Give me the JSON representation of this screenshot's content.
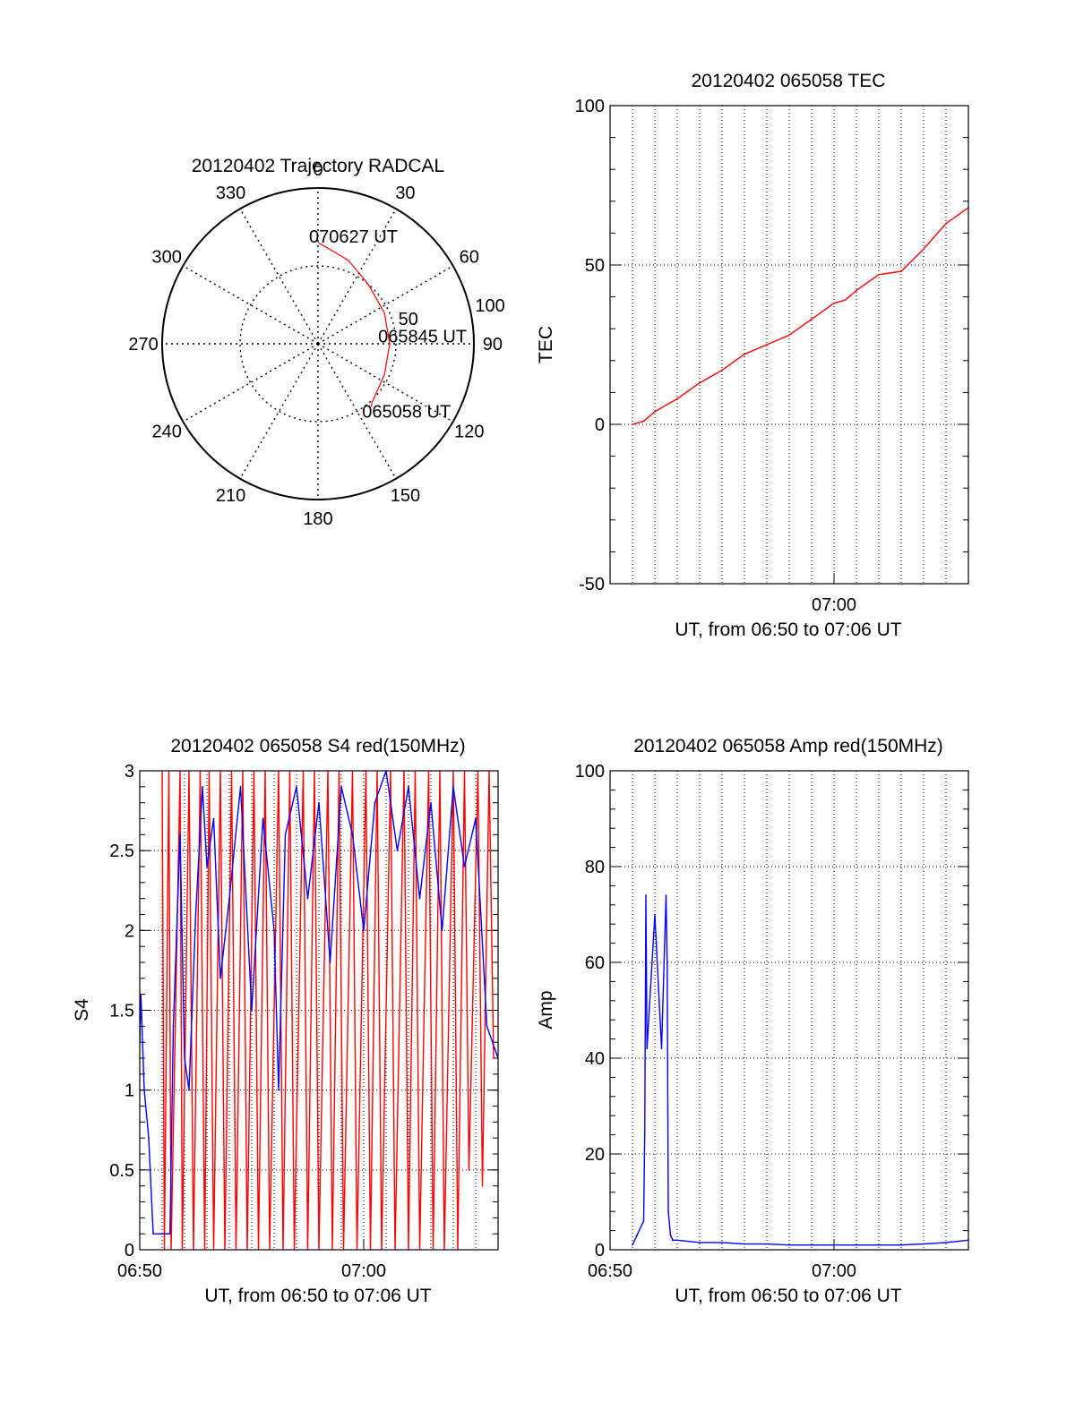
{
  "colors": {
    "red": "#ff0000",
    "blue": "#0000ff",
    "grid": "#000000"
  },
  "chart_data": [
    {
      "id": "trajectory",
      "type": "scatter",
      "title": "20120402 Trajectory RADCAL",
      "azimuth_labels": [
        "0",
        "30",
        "60",
        "90",
        "120",
        "150",
        "180",
        "210",
        "240",
        "270",
        "300",
        "330"
      ],
      "radius_labels": [
        "50",
        "100"
      ],
      "rlim": [
        0,
        100
      ],
      "grid": true,
      "series": [
        {
          "color": "#ff0000",
          "points": [
            {
              "az": 0,
              "r": 65
            },
            {
              "az": 20,
              "r": 57
            },
            {
              "az": 40,
              "r": 50
            },
            {
              "az": 65,
              "r": 47
            },
            {
              "az": 90,
              "r": 46
            },
            {
              "az": 115,
              "r": 47
            },
            {
              "az": 137,
              "r": 51
            },
            {
              "az": 140,
              "r": 53
            }
          ]
        }
      ],
      "annotations": [
        {
          "text": "070627 UT",
          "az": 0,
          "r": 65
        },
        {
          "text": "065845 UT",
          "az": 80,
          "r": 45
        },
        {
          "text": "065058 UT",
          "az": 140,
          "r": 53
        }
      ]
    },
    {
      "id": "tec",
      "type": "line",
      "title": "20120402 065058 TEC",
      "xlabel": "UT, from 06:50 to 07:06 UT",
      "ylabel": "TEC",
      "xlim": [
        0,
        16
      ],
      "ylim": [
        -50,
        100
      ],
      "xtick_labels": [
        {
          "x": 10,
          "label": "07:00"
        }
      ],
      "ytick_labels": [
        "-50",
        "0",
        "50",
        "100"
      ],
      "grid": true,
      "series": [
        {
          "color": "#ff0000",
          "x": [
            1,
            1.5,
            2,
            3,
            4,
            5,
            6,
            7,
            8,
            9,
            10,
            10.5,
            11,
            12,
            13,
            14,
            15,
            16
          ],
          "values": [
            0,
            1,
            4,
            8,
            13,
            17,
            22,
            25,
            28,
            33,
            38,
            39,
            42,
            47,
            48,
            55,
            63,
            68
          ]
        }
      ]
    },
    {
      "id": "s4",
      "type": "line",
      "title": "20120402 065058 S4 red(150MHz)",
      "xlabel": "UT, from 06:50 to 07:06 UT",
      "ylabel": "S4",
      "xlim": [
        0,
        16
      ],
      "ylim": [
        0,
        3
      ],
      "xtick_labels": [
        {
          "x": 0,
          "label": "06:50"
        },
        {
          "x": 10,
          "label": "07:00"
        }
      ],
      "ytick_labels": [
        "0",
        "0.5",
        "1",
        "1.5",
        "2",
        "2.5",
        "3"
      ],
      "grid": true,
      "series": [
        {
          "color": "#ff0000",
          "x": [
            1,
            1.1,
            1.3,
            1.4,
            1.8,
            1.9,
            2.2,
            2.4,
            2.7,
            2.9,
            3.1,
            3.3,
            3.6,
            3.8,
            4.1,
            4.3,
            4.6,
            4.8,
            5.1,
            5.3,
            5.6,
            5.8,
            6.2,
            6.4,
            6.7,
            6.9,
            7.3,
            7.5,
            7.8,
            8.0,
            8.4,
            8.6,
            8.9,
            9.1,
            9.5,
            9.7,
            10.1,
            10.3,
            10.6,
            10.8,
            11.2,
            11.4,
            11.8,
            12.0,
            12.3,
            12.5,
            12.9,
            13.1,
            13.4,
            13.6,
            14.0,
            14.2,
            14.5,
            14.7,
            15.1,
            15.3,
            15.6,
            15.8
          ],
          "values": [
            3,
            0,
            3,
            0,
            3,
            0,
            3,
            0,
            3,
            0,
            3,
            0,
            3,
            0,
            3,
            0,
            3,
            0,
            3,
            0,
            3,
            0,
            3,
            0,
            3,
            0,
            3,
            0,
            3,
            0,
            3,
            0,
            3,
            0,
            3,
            0,
            3,
            0,
            3,
            0,
            3,
            0,
            3,
            0,
            3,
            0,
            3,
            0,
            3,
            0,
            3,
            0,
            3,
            0.5,
            3,
            0.4,
            3,
            1.2
          ]
        },
        {
          "color": "#0000ff",
          "x": [
            0,
            0.05,
            0.2,
            0.4,
            0.6,
            0.9,
            1.2,
            1.35,
            1.5,
            1.8,
            2.0,
            2.2,
            2.5,
            2.8,
            3.0,
            3.3,
            3.6,
            4.0,
            4.5,
            5.0,
            5.5,
            6.0,
            6.2,
            6.5,
            7.0,
            7.5,
            8.0,
            8.5,
            9.0,
            9.5,
            10.0,
            10.5,
            11.0,
            11.5,
            12.0,
            12.5,
            13.0,
            13.5,
            14.0,
            14.5,
            15.0,
            15.5,
            16.0
          ],
          "values": [
            1.3,
            1.6,
            1.0,
            0.7,
            0.1,
            0.1,
            0.1,
            0.1,
            1.4,
            2.6,
            1.2,
            1.0,
            2.1,
            2.9,
            2.4,
            2.7,
            1.7,
            2.2,
            2.9,
            1.5,
            2.7,
            2.0,
            1.0,
            2.6,
            2.9,
            2.2,
            2.8,
            1.8,
            2.9,
            2.6,
            2.0,
            2.8,
            3.0,
            2.5,
            2.9,
            2.2,
            2.8,
            2.0,
            2.9,
            2.4,
            2.7,
            1.4,
            1.2
          ]
        }
      ]
    },
    {
      "id": "amp",
      "type": "line",
      "title": "20120402 065058 Amp red(150MHz)",
      "xlabel": "UT, from 06:50 to 07:06 UT",
      "ylabel": "Amp",
      "xlim": [
        0,
        16
      ],
      "ylim": [
        0,
        100
      ],
      "xtick_labels": [
        {
          "x": 0,
          "label": "06:50"
        },
        {
          "x": 10,
          "label": "07:00"
        }
      ],
      "ytick_labels": [
        "0",
        "20",
        "40",
        "60",
        "80",
        "100"
      ],
      "grid": true,
      "series": [
        {
          "color": "#0000ff",
          "x": [
            1,
            1.2,
            1.4,
            1.5,
            1.55,
            1.6,
            1.65,
            2.0,
            2.3,
            2.5,
            2.55,
            2.6,
            2.7,
            2.8,
            3.0,
            4.0,
            5.0,
            6.0,
            7.0,
            8.0,
            9.0,
            10.0,
            11.0,
            12.0,
            13.0,
            14.0,
            15.0,
            16.0
          ],
          "values": [
            1,
            3,
            5,
            6,
            25,
            74,
            42,
            70,
            42,
            74,
            60,
            8,
            3,
            2,
            2,
            1.5,
            1.5,
            1.2,
            1.2,
            1,
            1,
            1,
            1,
            1,
            1,
            1.2,
            1.5,
            2
          ]
        }
      ]
    }
  ]
}
